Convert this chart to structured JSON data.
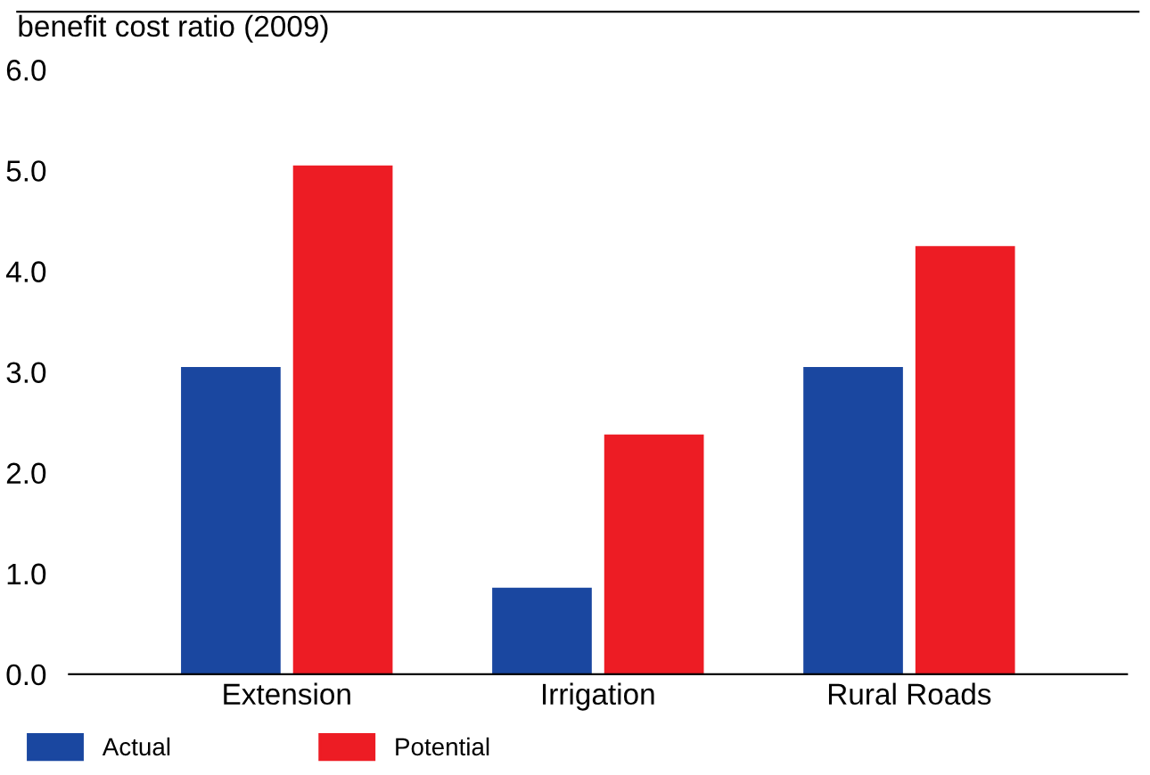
{
  "chart_data": {
    "type": "bar",
    "ylabel": "benefit cost ratio (2009)",
    "categories": [
      "Extension",
      "Irrigation",
      "Rural Roads"
    ],
    "series": [
      {
        "name": "Actual",
        "color": "#1a47a0",
        "values": [
          3.05,
          0.86,
          3.05
        ]
      },
      {
        "name": "Potential",
        "color": "#ed1c24",
        "values": [
          5.05,
          2.38,
          4.25
        ]
      }
    ],
    "ylim": [
      0,
      6
    ],
    "yticks": [
      {
        "value": 0,
        "label": "0.0"
      },
      {
        "value": 1,
        "label": "1.0"
      },
      {
        "value": 2,
        "label": "2.0"
      },
      {
        "value": 3,
        "label": "3.0"
      },
      {
        "value": 4,
        "label": "4.0"
      },
      {
        "value": 5,
        "label": "5.0"
      },
      {
        "value": 6,
        "label": "6.0"
      }
    ],
    "grid": false,
    "legend": "bottom left"
  }
}
